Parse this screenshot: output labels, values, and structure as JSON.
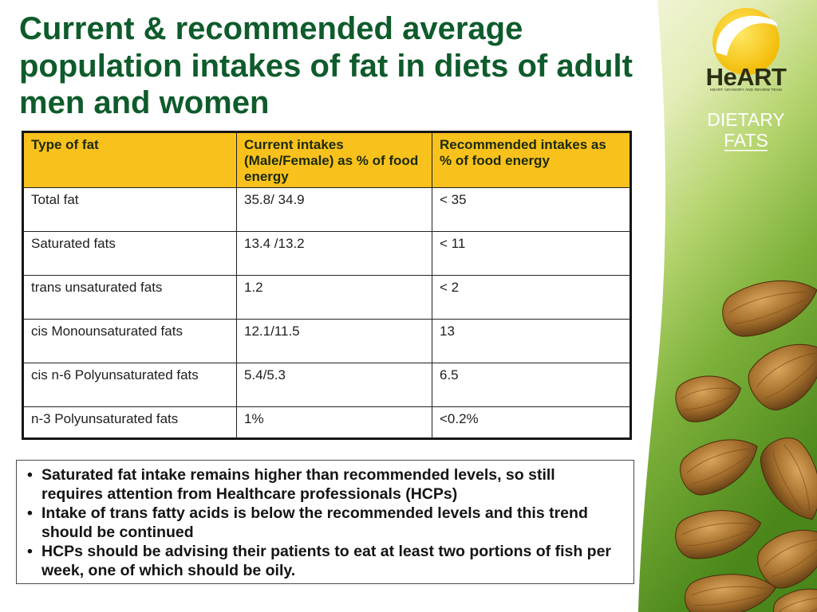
{
  "theme": {
    "title_color": "#0e5b2b",
    "table_header_fill": "#f9c11c",
    "brand_yellow": "#f2b900"
  },
  "slide": {
    "title": "Current & recommended average population intakes of fat in diets of adult men and women"
  },
  "branding": {
    "logo_icon": "heart-logo-icon",
    "logo_name": "HeART",
    "logo_tagline": "HEART ADVISORY AND REVIEW TEAM",
    "topic_line1": "DIETARY",
    "topic_line2": "FATS"
  },
  "table": {
    "headers": [
      "Type of fat",
      "Current intakes (Male/Female) as % of food energy",
      "Recommended intakes as % of food energy"
    ],
    "rows": [
      [
        "Total fat",
        "35.8/ 34.9",
        "< 35"
      ],
      [
        "Saturated fats",
        "13.4 /13.2",
        "< 11"
      ],
      [
        "trans unsaturated fats",
        "1.2",
        "< 2"
      ],
      [
        "cis Monounsaturated fats",
        "12.1/11.5",
        "13"
      ],
      [
        "cis n-6 Polyunsaturated fats",
        "5.4/5.3",
        "6.5"
      ],
      [
        "n-3 Polyunsaturated fats",
        "1%",
        "<0.2%"
      ]
    ]
  },
  "notes": {
    "bullets": [
      "Saturated fat intake remains higher than recommended levels, so still requires attention from Healthcare professionals (HCPs)",
      "Intake of trans fatty acids is below the recommended levels and this trend should be continued",
      "HCPs should be advising their patients to eat at least two portions of fish per week, one of which should be oily."
    ]
  }
}
